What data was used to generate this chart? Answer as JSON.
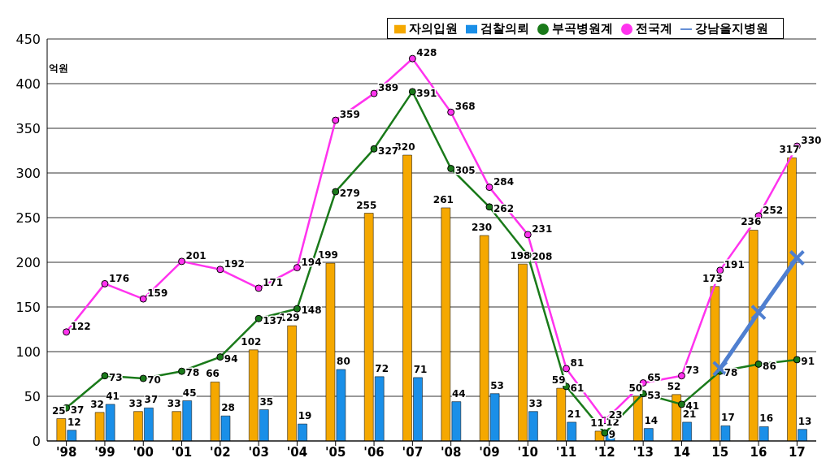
{
  "chart_data": {
    "type": "bar",
    "ylabel": "억원",
    "categories": [
      "'98",
      "'99",
      "'00",
      "'01",
      "'02",
      "'03",
      "'04",
      "'05",
      "'06",
      "'07",
      "'08",
      "'09",
      "'10",
      "'11",
      "'12",
      "'13",
      "14",
      "15",
      "16",
      "17"
    ],
    "series": [
      {
        "name": "자의입원",
        "color": "#f5a800",
        "values": [
          25,
          32,
          33,
          33,
          66,
          102,
          129,
          199,
          255,
          320,
          261,
          230,
          198,
          59,
          11,
          50,
          52,
          173,
          236,
          317
        ],
        "data_labels": true
      },
      {
        "name": "검찰의뢰",
        "color": "#1a8fe8",
        "values": [
          12,
          41,
          37,
          45,
          28,
          35,
          19,
          80,
          72,
          71,
          44,
          53,
          33,
          21,
          12,
          14,
          21,
          17,
          16,
          13
        ],
        "data_labels": true
      },
      {
        "name": "부곡병원계",
        "type": "line",
        "color": "#1a7a1a",
        "marker": "circle",
        "values": [
          37,
          73,
          70,
          78,
          94,
          137,
          148,
          279,
          327,
          391,
          305,
          262,
          208,
          61,
          9,
          53,
          41,
          78,
          86,
          91
        ],
        "data_labels": true
      },
      {
        "name": "전국계",
        "type": "line",
        "color": "#ff33ee",
        "marker": "circle",
        "values": [
          122,
          176,
          159,
          201,
          192,
          171,
          194,
          359,
          389,
          428,
          368,
          284,
          231,
          81,
          23,
          65,
          73,
          191,
          252,
          330
        ],
        "data_labels": true
      },
      {
        "name": "강남을지병원",
        "type": "line",
        "color": "#4f7fd0",
        "marker": "cross",
        "values": [
          null,
          null,
          null,
          null,
          null,
          null,
          null,
          null,
          null,
          null,
          null,
          null,
          null,
          null,
          null,
          null,
          null,
          81,
          144,
          205
        ]
      }
    ],
    "ylim": [
      0,
      450
    ],
    "yticks": [
      0,
      50,
      100,
      150,
      200,
      250,
      300,
      350,
      400,
      450
    ],
    "grid": "y",
    "legend": "top right"
  }
}
